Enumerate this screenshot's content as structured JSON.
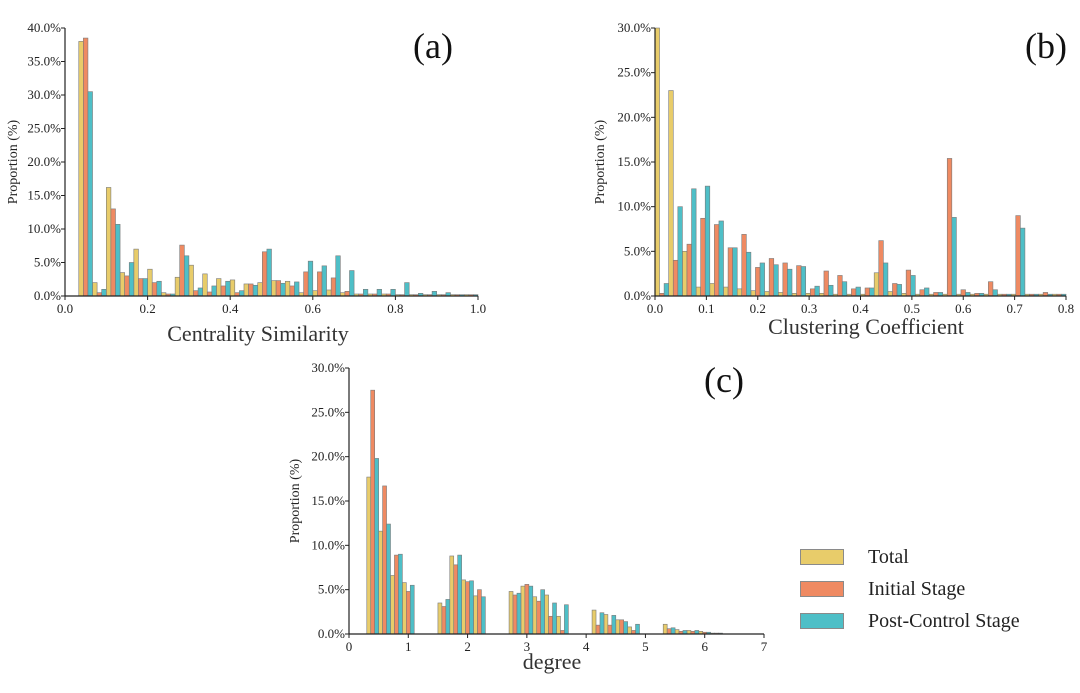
{
  "colors": {
    "total": "#E8CC6A",
    "initial": "#EF8A62",
    "post": "#4EBFC7",
    "edge": "#7a7a7a",
    "axis": "#222222"
  },
  "legend": [
    {
      "key": "total",
      "label": "Total"
    },
    {
      "key": "initial",
      "label": "Initial Stage"
    },
    {
      "key": "post",
      "label": "Post-Control Stage"
    }
  ],
  "chart_data": [
    {
      "panel": "(a)",
      "type": "bar",
      "xlabel": "Centrality Similarity",
      "ylabel": "Proportion (%)",
      "xlim": [
        0,
        1.0
      ],
      "ylim": [
        0,
        40
      ],
      "xticks": [
        0,
        0.2,
        0.4,
        0.6,
        0.8,
        1.0
      ],
      "xtick_labels": [
        "0.0",
        "0.2",
        "0.4",
        "0.6",
        "0.8",
        "1.0"
      ],
      "yticks": [
        0,
        5,
        10,
        15,
        20,
        25,
        30,
        35,
        40
      ],
      "ytick_labels": [
        "0.0%",
        "5.0%",
        "10.0%",
        "15.0%",
        "20.0%",
        "25.0%",
        "30.0%",
        "35.0%",
        "40.0%"
      ],
      "bin_width": 0.0333,
      "x": [
        0.05,
        0.0833,
        0.1167,
        0.15,
        0.1833,
        0.2167,
        0.25,
        0.2833,
        0.3167,
        0.35,
        0.3833,
        0.4167,
        0.45,
        0.4833,
        0.5167,
        0.55,
        0.5833,
        0.6167,
        0.65,
        0.6833,
        0.7167,
        0.75,
        0.7833,
        0.8167,
        0.85,
        0.8833,
        0.9167,
        0.95,
        0.9833
      ],
      "series": [
        {
          "name": "Total",
          "values": [
            38.0,
            2.0,
            16.2,
            3.5,
            7.0,
            4.0,
            0.5,
            2.8,
            4.6,
            3.3,
            2.6,
            2.4,
            1.8,
            2.0,
            2.3,
            2.2,
            0.5,
            0.8,
            0.9,
            0.5,
            0.3,
            0.3,
            0.3,
            0.2,
            0.2,
            0.2,
            0.2,
            0.2,
            0.2
          ]
        },
        {
          "name": "Initial Stage",
          "values": [
            38.5,
            0.5,
            13.0,
            3.0,
            2.6,
            2.0,
            0.3,
            7.6,
            0.8,
            0.6,
            1.5,
            0.5,
            1.8,
            6.6,
            2.3,
            1.5,
            3.6,
            3.6,
            2.7,
            0.7,
            0.3,
            0.3,
            0.3,
            0.2,
            0.2,
            0.2,
            0.2,
            0.2,
            0.2
          ]
        },
        {
          "name": "Post-Control Stage",
          "values": [
            30.5,
            1.0,
            10.7,
            5.0,
            2.6,
            2.2,
            0.3,
            6.0,
            1.2,
            1.5,
            2.2,
            0.8,
            1.6,
            7.0,
            1.9,
            2.1,
            5.2,
            4.5,
            6.0,
            3.8,
            1.0,
            1.0,
            1.0,
            2.0,
            0.4,
            0.7,
            0.5,
            0.2,
            0.2
          ]
        }
      ]
    },
    {
      "panel": "(b)",
      "type": "bar",
      "xlabel": "Clustering Coefficient",
      "ylabel": "Proportion (%)",
      "xlim": [
        0,
        0.8
      ],
      "ylim": [
        0,
        30
      ],
      "xticks": [
        0,
        0.1,
        0.2,
        0.3,
        0.4,
        0.5,
        0.6,
        0.7,
        0.8
      ],
      "xtick_labels": [
        "0.0",
        "0.1",
        "0.2",
        "0.3",
        "0.4",
        "0.5",
        "0.6",
        "0.7",
        "0.8"
      ],
      "yticks": [
        0,
        5,
        10,
        15,
        20,
        25,
        30
      ],
      "ytick_labels": [
        "0.0%",
        "5.0%",
        "10.0%",
        "15.0%",
        "20.0%",
        "25.0%",
        "30.0%"
      ],
      "bin_width": 0.0267,
      "x": [
        0.0133,
        0.04,
        0.0667,
        0.0933,
        0.12,
        0.1467,
        0.1733,
        0.2,
        0.2267,
        0.2533,
        0.28,
        0.3067,
        0.3333,
        0.36,
        0.3867,
        0.4133,
        0.44,
        0.4667,
        0.4933,
        0.52,
        0.5467,
        0.5733,
        0.6,
        0.6267,
        0.6533,
        0.68,
        0.7067,
        0.7333,
        0.76,
        0.7867
      ],
      "series": [
        {
          "name": "Total",
          "values": [
            30.0,
            23.0,
            5.0,
            1.0,
            1.4,
            1.0,
            0.8,
            0.6,
            0.5,
            0.4,
            0.3,
            0.3,
            0.3,
            0.2,
            0.2,
            0.2,
            2.6,
            0.5,
            0.3,
            0.2,
            0.2,
            0.2,
            0.2,
            0.2,
            0.2,
            0.2,
            0.2,
            0.2,
            0.2,
            0.2
          ]
        },
        {
          "name": "Initial Stage",
          "values": [
            0.3,
            4.0,
            5.8,
            8.7,
            8.0,
            5.4,
            6.9,
            3.2,
            4.2,
            3.7,
            3.4,
            0.8,
            2.8,
            2.3,
            0.8,
            0.9,
            6.2,
            1.4,
            2.9,
            0.7,
            0.4,
            15.4,
            0.7,
            0.3,
            1.6,
            0.2,
            9.0,
            0.2,
            0.4,
            0.2
          ]
        },
        {
          "name": "Post-Control Stage",
          "values": [
            1.4,
            10.0,
            12.0,
            12.3,
            8.4,
            5.4,
            4.9,
            3.7,
            3.5,
            3.0,
            3.3,
            1.1,
            1.2,
            1.6,
            1.0,
            0.9,
            3.7,
            1.3,
            2.3,
            0.9,
            0.4,
            8.8,
            0.4,
            0.3,
            0.7,
            0.2,
            7.6,
            0.2,
            0.2,
            0.2
          ]
        }
      ]
    },
    {
      "panel": "(c)",
      "type": "bar",
      "xlabel": "degree",
      "ylabel": "Proportion (%)",
      "xlim": [
        0,
        7
      ],
      "ylim": [
        0,
        30
      ],
      "xticks": [
        0,
        1,
        2,
        3,
        4,
        5,
        6,
        7
      ],
      "xtick_labels": [
        "0",
        "1",
        "2",
        "3",
        "4",
        "5",
        "6",
        "7"
      ],
      "yticks": [
        0,
        5,
        10,
        15,
        20,
        25,
        30
      ],
      "ytick_labels": [
        "0.0%",
        "5.0%",
        "10.0%",
        "15.0%",
        "20.0%",
        "25.0%",
        "30.0%"
      ],
      "bin_width": 0.2,
      "x": [
        0.4,
        0.6,
        0.8,
        1.0,
        1.6,
        1.8,
        2.0,
        2.2,
        2.8,
        3.0,
        3.2,
        3.4,
        3.6,
        4.2,
        4.4,
        4.6,
        4.8,
        5.4,
        5.6,
        5.8,
        6.0,
        6.2
      ],
      "series": [
        {
          "name": "Total",
          "values": [
            17.7,
            11.6,
            6.6,
            5.8,
            3.5,
            8.8,
            6.1,
            4.3,
            4.8,
            5.4,
            4.2,
            4.4,
            2.0,
            2.7,
            2.2,
            1.6,
            0.8,
            1.1,
            0.5,
            0.4,
            0.3,
            0.1
          ]
        },
        {
          "name": "Initial Stage",
          "values": [
            27.5,
            16.7,
            8.9,
            4.8,
            3.1,
            7.8,
            5.9,
            5.0,
            4.4,
            5.6,
            3.7,
            2.0,
            0.4,
            1.0,
            1.0,
            1.6,
            0.4,
            0.6,
            0.3,
            0.3,
            0.2,
            0.1
          ]
        },
        {
          "name": "Post-Control Stage",
          "values": [
            19.8,
            12.4,
            9.0,
            5.5,
            3.9,
            8.9,
            6.0,
            4.2,
            4.6,
            5.4,
            5.0,
            3.5,
            3.3,
            2.4,
            2.1,
            1.4,
            1.1,
            0.7,
            0.4,
            0.4,
            0.2,
            0.1
          ]
        }
      ]
    }
  ]
}
